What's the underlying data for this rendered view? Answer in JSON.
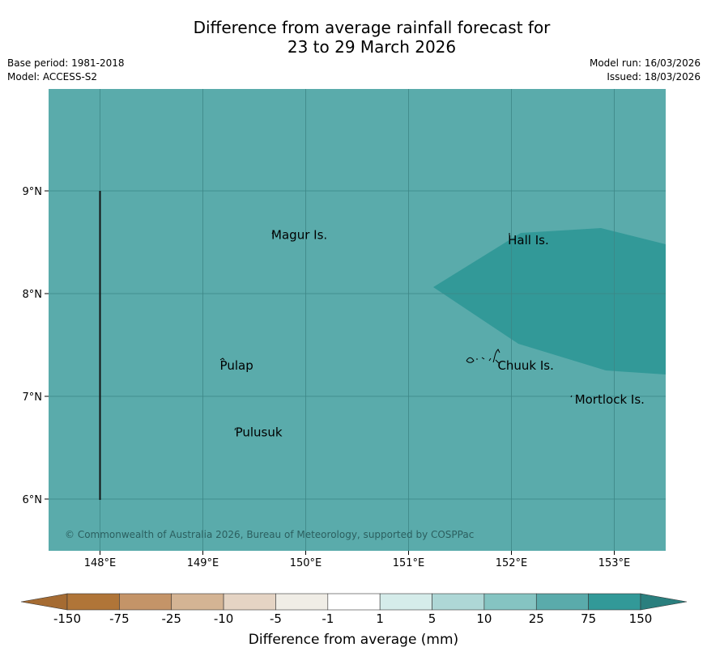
{
  "title": {
    "line1": "Difference from average rainfall forecast for",
    "line2": "23 to 29 March 2026"
  },
  "meta": {
    "base_period": "Base period: 1981-2018",
    "model": "Model: ACCESS-S2",
    "model_run": "Model run: 16/03/2026",
    "issued": "Issued: 18/03/2026"
  },
  "map": {
    "background_color": "#5aabab",
    "wet_color": "#329998",
    "copyright": "© Commonwealth of Australia 2026, Bureau of Meteorology, supported by COSPPac",
    "lon_ticks": [
      "148°E",
      "149°E",
      "150°E",
      "151°E",
      "152°E",
      "153°E"
    ],
    "lat_ticks": [
      "9°N",
      "8°N",
      "7°N",
      "6°N"
    ],
    "places": [
      {
        "name": "Magur Is.",
        "lon": 149.65,
        "lat": 8.57
      },
      {
        "name": "Hall Is.",
        "lon": 151.95,
        "lat": 8.52
      },
      {
        "name": "Pulap",
        "lon": 149.15,
        "lat": 7.3
      },
      {
        "name": "Chuuk Is.",
        "lon": 151.85,
        "lat": 7.3
      },
      {
        "name": "Mortlock Is.",
        "lon": 152.6,
        "lat": 6.97
      },
      {
        "name": "Pulusuk",
        "lon": 149.3,
        "lat": 6.65
      }
    ]
  },
  "legend": {
    "title": "Difference from average (mm)",
    "labels": [
      "-150",
      "-75",
      "-25",
      "-10",
      "-5",
      "-1",
      "1",
      "5",
      "10",
      "25",
      "75",
      "150"
    ],
    "colors": [
      "#a56b32",
      "#b07538",
      "#c49468",
      "#d4b494",
      "#e5d4c4",
      "#f0ede6",
      "#ffffff",
      "#d5ecea",
      "#aed7d6",
      "#85c4c2",
      "#5aabab",
      "#329998",
      "#2a7f7e"
    ]
  }
}
